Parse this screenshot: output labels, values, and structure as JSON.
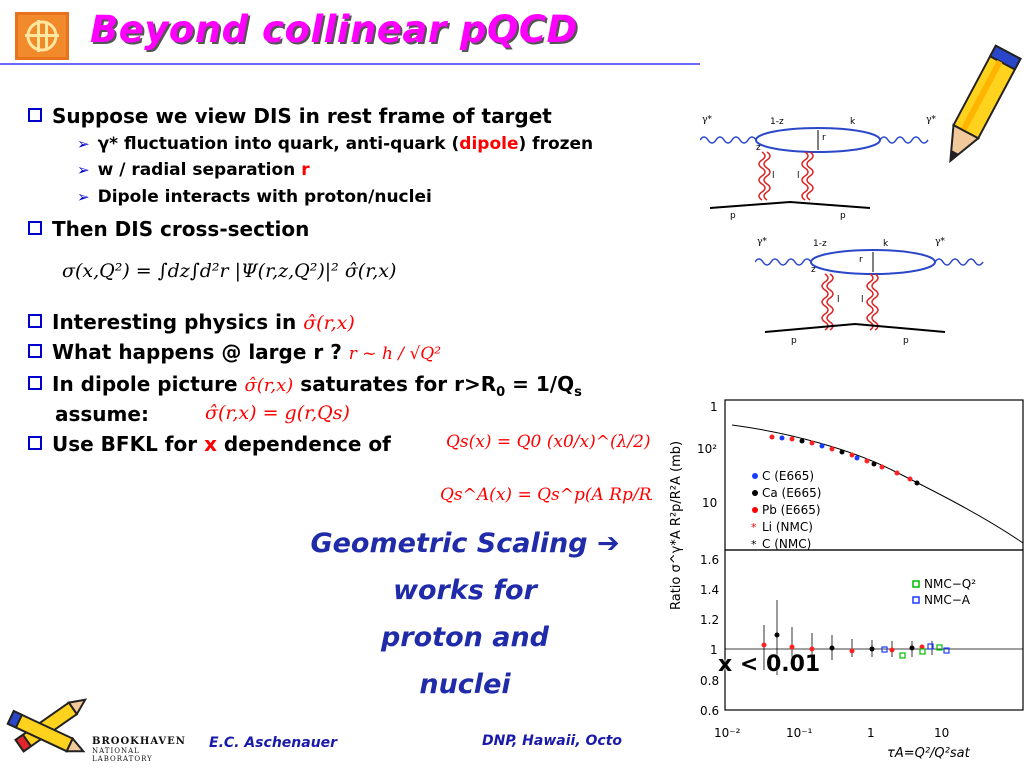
{
  "header": {
    "title": "Beyond collinear pQCD"
  },
  "bullets": {
    "b1": "Suppose we view DIS in rest frame of target",
    "b1_sub1_pre": "γ* fluctuation into quark, anti-quark (",
    "b1_sub1_red": "dipole",
    "b1_sub1_post": ") frozen",
    "b1_sub2_pre": "w / radial separation ",
    "b1_sub2_red": "r",
    "b1_sub3": "Dipole interacts with proton/nuclei",
    "b2": "Then DIS cross-section",
    "b3_pre": "Interesting physics in ",
    "b4_pre": "What happens @ large r ?",
    "b5_pre": "In dipole picture",
    "b5_mid": "saturates for r>R",
    "b5_sub0": "0",
    "b5_eq": " = 1/Q",
    "b5_subs": "s",
    "b5_assume": "assume:",
    "b6_pre": "Use BFKL for ",
    "b6_x": "x",
    "b6_post": " dependence of"
  },
  "equations": {
    "sigma_def": "σ(x,Q²) = ∫dz∫d²r |Ψ(r,z,Q²)|² σ̂(r,x)",
    "sigma_hat": "σ̂(r,x)",
    "r_scale": "r ~ h / √Q²",
    "assume_eq": "σ̂(r,x) = g(r,Qs)",
    "qs_x": "Qs(x) = Q0 (x0/x)^(λ/2)",
    "qs_a": "Qs^A(x) = Qs^p(A Rp/RA)^λ"
  },
  "callout": {
    "line1": "Geometric Scaling",
    "line2": "works for",
    "line3": "proton and",
    "line4": "nuclei"
  },
  "diagram": {
    "gamma_in": "γ*",
    "gamma_out": "γ*",
    "label_1mz": "1-z",
    "label_k": "k",
    "label_r": "r",
    "label_z": "z",
    "label_l1": "l",
    "label_l2": "l",
    "label_p1": "p",
    "label_p2": "p"
  },
  "plot": {
    "x_text": "x < 0.01",
    "xlabel": "τA=Q²/Q²sat",
    "ylabel": "Ratio σ^γ*A R²p/R²A (mb)",
    "legend_top": [
      "C (E665)",
      "Ca (E665)",
      "Pb (E665)",
      "Li (NMC)",
      "C (NMC)"
    ],
    "legend_bottom": [
      "NMC−Q²",
      "NMC−A"
    ],
    "legend_top_colors": [
      "#1a3cff",
      "#000000",
      "#ff0000",
      "#ff0000",
      "#000000"
    ],
    "legend_bottom_colors": [
      "#00bb00",
      "#1a3cff"
    ],
    "yticks_top": [
      "1",
      "10²",
      "10"
    ],
    "yticks_bottom": [
      "1.6",
      "1.4",
      "1.2",
      "1",
      "0.8",
      "0.6"
    ],
    "xticks": [
      "10⁻²",
      "10⁻¹",
      "1",
      "10"
    ]
  },
  "footer": {
    "author": "E.C. Aschenauer",
    "conference": "DNP, Hawaii, Octo",
    "lab": "BROOKHAVEN",
    "lab_sub": "NATIONAL LABORATORY"
  },
  "colors": {
    "title": "#ff00ff",
    "accent_blue": "#0000cc",
    "highlight_red": "#ff0000",
    "callout": "#1f2ba8"
  }
}
